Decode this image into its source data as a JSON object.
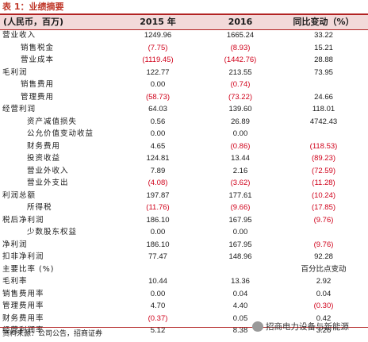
{
  "title": "表 1：业绩摘要",
  "header": {
    "col0": "(人民币，百万)",
    "col1": "2015 年",
    "col2": "2016",
    "col3": "同比变动（%）"
  },
  "rows": [
    {
      "label": "营业收入",
      "indent": 0,
      "v1": "1249.96",
      "v2": "1665.24",
      "v3": "33.22"
    },
    {
      "label": "销售税金",
      "indent": 1,
      "v1": "(7.75)",
      "v2": "(8.93)",
      "v3": "15.21"
    },
    {
      "label": "营业成本",
      "indent": 1,
      "v1": "(1119.45)",
      "v2": "(1442.76)",
      "v3": "28.88"
    },
    {
      "label": "毛利润",
      "indent": 0,
      "v1": "122.77",
      "v2": "213.55",
      "v3": "73.95"
    },
    {
      "label": "销售费用",
      "indent": 1,
      "v1": "0.00",
      "v2": "(0.74)",
      "v3": ""
    },
    {
      "label": "管理费用",
      "indent": 1,
      "v1": "(58.73)",
      "v2": "(73.22)",
      "v3": "24.66"
    },
    {
      "label": "经营利润",
      "indent": 0,
      "v1": "64.03",
      "v2": "139.60",
      "v3": "118.01"
    },
    {
      "label": "资产减值损失",
      "indent": 2,
      "v1": "0.56",
      "v2": "26.89",
      "v3": "4742.43"
    },
    {
      "label": "公允价值变动收益",
      "indent": 2,
      "v1": "0.00",
      "v2": "0.00",
      "v3": ""
    },
    {
      "label": "财务费用",
      "indent": 2,
      "v1": "4.65",
      "v2": "(0.86)",
      "v3": "(118.53)"
    },
    {
      "label": "投资收益",
      "indent": 2,
      "v1": "124.81",
      "v2": "13.44",
      "v3": "(89.23)"
    },
    {
      "label": "营业外收入",
      "indent": 2,
      "v1": "7.89",
      "v2": "2.16",
      "v3": "(72.59)"
    },
    {
      "label": "营业外支出",
      "indent": 2,
      "v1": "(4.08)",
      "v2": "(3.62)",
      "v3": "(11.28)"
    },
    {
      "label": "利润总额",
      "indent": 0,
      "v1": "197.87",
      "v2": "177.61",
      "v3": "(10.24)"
    },
    {
      "label": "所得税",
      "indent": 2,
      "v1": "(11.76)",
      "v2": "(9.66)",
      "v3": "(17.85)"
    },
    {
      "label": "税后净利润",
      "indent": 0,
      "v1": "186.10",
      "v2": "167.95",
      "v3": "(9.76)"
    },
    {
      "label": "少数股东权益",
      "indent": 2,
      "v1": "0.00",
      "v2": "0.00",
      "v3": ""
    },
    {
      "label": "净利润",
      "indent": 0,
      "v1": "186.10",
      "v2": "167.95",
      "v3": "(9.76)"
    },
    {
      "label": "扣非净利润",
      "indent": 0,
      "v1": "77.47",
      "v2": "148.96",
      "v3": "92.28"
    },
    {
      "label": "主要比率 (%)",
      "indent": 0,
      "v1": "",
      "v2": "",
      "v3": "百分比点变动"
    },
    {
      "label": "毛利率",
      "indent": 0,
      "v1": "10.44",
      "v2": "13.36",
      "v3": "2.92"
    },
    {
      "label": "销售费用率",
      "indent": 0,
      "v1": "0.00",
      "v2": "0.04",
      "v3": "0.04"
    },
    {
      "label": "管理费用率",
      "indent": 0,
      "v1": "4.70",
      "v2": "4.40",
      "v3": "(0.30)"
    },
    {
      "label": "财务费用率",
      "indent": 0,
      "v1": "(0.37)",
      "v2": "0.05",
      "v3": "0.42"
    },
    {
      "label": "经营利润率",
      "indent": 0,
      "v1": "5.12",
      "v2": "8.38",
      "v3": "3.26"
    }
  ],
  "source": "资料来源：公司公告，招商证券",
  "watermark": "招商电力设备与新能源",
  "colors": {
    "accent": "#b22222",
    "negative": "#d0021b",
    "header_bg": "#f2d9d9"
  }
}
